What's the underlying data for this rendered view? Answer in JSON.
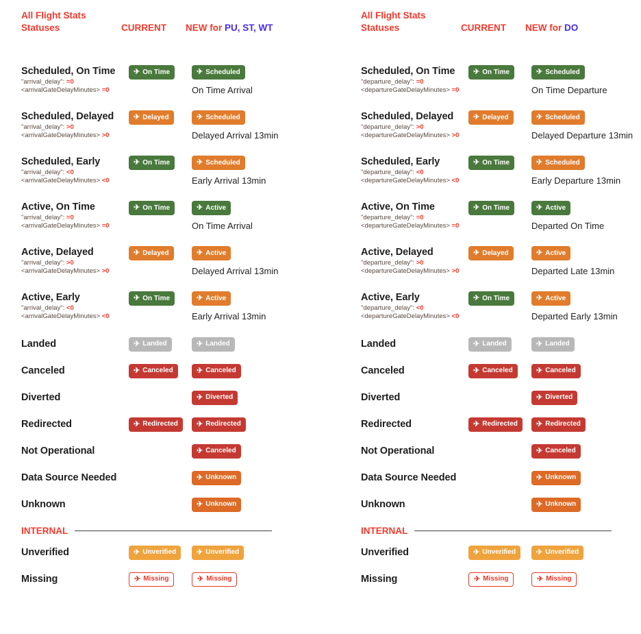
{
  "colors": {
    "accent_red": "#f4392d",
    "accent_blue": "#4b2ce0",
    "label": "#1e1e1e",
    "code_name": "#5a473f",
    "code_value": "#f4392d",
    "description": "#222222",
    "badge_green": "#49793c",
    "badge_orange": "#e07c2c",
    "badge_orange_deep": "#dd6a26",
    "badge_red": "#c43a33",
    "badge_gray": "#b9b8b8",
    "badge_amber": "#efa33d",
    "badge_outline_red": "#e8382a",
    "divider": "#3d3d3d"
  },
  "icons": {
    "plane": "✈"
  },
  "columns": [
    {
      "id": "arrivals",
      "header": {
        "title_line1": "All Flight Stats",
        "title_line2": "Statuses",
        "current": "CURRENT",
        "new_prefix": "NEW for",
        "new_target": "PU, ST, WT"
      },
      "detail_rows": [
        {
          "label": "Scheduled, On Time",
          "code1_name": "\"arrival_delay\":",
          "code1_value": "=0",
          "code2_name": "<arrivalGateDelayMinutes>",
          "code2_value": "=0",
          "current_badge": {
            "label": "On Time",
            "variant": "green"
          },
          "new_badge": {
            "label": "Scheduled",
            "variant": "green"
          },
          "description": "On Time Arrival",
          "gap": false
        },
        {
          "label": "Scheduled, Delayed",
          "code1_name": "\"arrival_delay\":",
          "code1_value": ">0",
          "code2_name": "<arrivalGateDelayMinutes>",
          "code2_value": ">0",
          "current_badge": {
            "label": "Delayed",
            "variant": "orange"
          },
          "new_badge": {
            "label": "Scheduled",
            "variant": "orange"
          },
          "description": "Delayed Arrival 13min",
          "gap": false
        },
        {
          "label": "Scheduled, Early",
          "code1_name": "\"arrival_delay\":",
          "code1_value": "<0",
          "code2_name": "<arrivalGateDelayMinutes>",
          "code2_value": "<0",
          "current_badge": {
            "label": "On Time",
            "variant": "green"
          },
          "new_badge": {
            "label": "Scheduled",
            "variant": "orange"
          },
          "description": "Early Arrival 13min",
          "gap": false
        },
        {
          "label": "Active, On Time",
          "code1_name": "\"arrival_delay\":",
          "code1_value": "=0",
          "code2_name": "<arrivalGateDelayMinutes>",
          "code2_value": "=0",
          "current_badge": {
            "label": "On Time",
            "variant": "green"
          },
          "new_badge": {
            "label": "Active",
            "variant": "green"
          },
          "description": "On Time Arrival",
          "gap": true
        },
        {
          "label": "Active, Delayed",
          "code1_name": "\"arrival_delay\":",
          "code1_value": ">0",
          "code2_name": "<arrivalGateDelayMinutes>",
          "code2_value": ">0",
          "current_badge": {
            "label": "Delayed",
            "variant": "orange"
          },
          "new_badge": {
            "label": "Active",
            "variant": "orange"
          },
          "description": "Delayed Arrival 13min",
          "gap": false
        },
        {
          "label": "Active, Early",
          "code1_name": "\"arrival_delay\":",
          "code1_value": "<0",
          "code2_name": "<arrivalGateDelayMinutes>",
          "code2_value": "<0",
          "current_badge": {
            "label": "On Time",
            "variant": "green"
          },
          "new_badge": {
            "label": "Active",
            "variant": "orange"
          },
          "description": "Early Arrival 13min",
          "gap": false
        }
      ],
      "simple_rows": [
        {
          "label": "Landed",
          "current_badge": {
            "label": "Landed",
            "variant": "gray"
          },
          "new_badge": {
            "label": "Landed",
            "variant": "gray"
          },
          "gap": true
        },
        {
          "label": "Canceled",
          "current_badge": {
            "label": "Canceled",
            "variant": "red"
          },
          "new_badge": {
            "label": "Canceled",
            "variant": "red"
          },
          "gap": false
        },
        {
          "label": "Diverted",
          "current_badge": null,
          "new_badge": {
            "label": "Diverted",
            "variant": "red"
          },
          "gap": false
        },
        {
          "label": "Redirected",
          "current_badge": {
            "label": "Redirected",
            "variant": "red"
          },
          "new_badge": {
            "label": "Redirected",
            "variant": "red"
          },
          "gap": false
        },
        {
          "label": "Not Operational",
          "current_badge": null,
          "new_badge": {
            "label": "Canceled",
            "variant": "red"
          },
          "gap": false
        },
        {
          "label": "Data Source Needed",
          "current_badge": null,
          "new_badge": {
            "label": "Unknown",
            "variant": "orange-deep"
          },
          "gap": false
        },
        {
          "label": "Unknown",
          "current_badge": null,
          "new_badge": {
            "label": "Unknown",
            "variant": "orange-deep"
          },
          "gap": false
        }
      ],
      "internal": {
        "label": "INTERNAL",
        "rows": [
          {
            "label": "Unverified",
            "current_badge": {
              "label": "Unverified",
              "variant": "amber"
            },
            "new_badge": {
              "label": "Unverified",
              "variant": "amber"
            },
            "gap": false
          },
          {
            "label": "Missing",
            "current_badge": {
              "label": "Missing",
              "variant": "outline"
            },
            "new_badge": {
              "label": "Missing",
              "variant": "outline"
            },
            "gap": false
          }
        ]
      }
    },
    {
      "id": "departures",
      "header": {
        "title_line1": "All Flight Stats",
        "title_line2": "Statuses",
        "current": "CURRENT",
        "new_prefix": "NEW for",
        "new_target": "DO"
      },
      "detail_rows": [
        {
          "label": "Scheduled, On Time",
          "code1_name": "\"departure_delay\":",
          "code1_value": "=0",
          "code2_name": "<departureGateDelayMinutes>",
          "code2_value": "=0",
          "current_badge": {
            "label": "On Time",
            "variant": "green"
          },
          "new_badge": {
            "label": "Scheduled",
            "variant": "green"
          },
          "description": "On Time Departure",
          "gap": false
        },
        {
          "label": "Scheduled, Delayed",
          "code1_name": "\"departure_delay\":",
          "code1_value": ">0",
          "code2_name": "<departureGateDelayMinutes>",
          "code2_value": ">0",
          "current_badge": {
            "label": "Delayed",
            "variant": "orange"
          },
          "new_badge": {
            "label": "Scheduled",
            "variant": "orange"
          },
          "description": "Delayed Departure 13min",
          "gap": false
        },
        {
          "label": "Scheduled, Early",
          "code1_name": "\"departure_delay\":",
          "code1_value": "<0",
          "code2_name": "<departureGateDelayMinutes>",
          "code2_value": "<0",
          "current_badge": {
            "label": "On Time",
            "variant": "green"
          },
          "new_badge": {
            "label": "Scheduled",
            "variant": "orange"
          },
          "description": "Early Departure 13min",
          "gap": false
        },
        {
          "label": "Active, On Time",
          "code1_name": "\"departure_delay\":",
          "code1_value": "=0",
          "code2_name": "<departureGateDelayMinutes>",
          "code2_value": "=0",
          "current_badge": {
            "label": "On Time",
            "variant": "green"
          },
          "new_badge": {
            "label": "Active",
            "variant": "green"
          },
          "description": "Departed On Time",
          "gap": true
        },
        {
          "label": "Active, Delayed",
          "code1_name": "\"departure_delay\":",
          "code1_value": ">0",
          "code2_name": "<departureGateDelayMinutes>",
          "code2_value": ">0",
          "current_badge": {
            "label": "Delayed",
            "variant": "orange"
          },
          "new_badge": {
            "label": "Active",
            "variant": "orange"
          },
          "description": "Departed Late 13min",
          "gap": false
        },
        {
          "label": "Active, Early",
          "code1_name": "\"departure_delay\":",
          "code1_value": "<0",
          "code2_name": "<departureGateDelayMinutes>",
          "code2_value": "<0",
          "current_badge": {
            "label": "On Time",
            "variant": "green"
          },
          "new_badge": {
            "label": "Active",
            "variant": "orange"
          },
          "description": "Departed Early 13min",
          "gap": false
        }
      ],
      "simple_rows": [
        {
          "label": "Landed",
          "current_badge": {
            "label": "Landed",
            "variant": "gray"
          },
          "new_badge": {
            "label": "Landed",
            "variant": "gray"
          },
          "gap": true
        },
        {
          "label": "Canceled",
          "current_badge": {
            "label": "Canceled",
            "variant": "red"
          },
          "new_badge": {
            "label": "Canceled",
            "variant": "red"
          },
          "gap": false
        },
        {
          "label": "Diverted",
          "current_badge": null,
          "new_badge": {
            "label": "Diverted",
            "variant": "red"
          },
          "gap": false
        },
        {
          "label": "Redirected",
          "current_badge": {
            "label": "Redirected",
            "variant": "red"
          },
          "new_badge": {
            "label": "Redirected",
            "variant": "red"
          },
          "gap": false
        },
        {
          "label": "Not Operational",
          "current_badge": null,
          "new_badge": {
            "label": "Canceled",
            "variant": "red"
          },
          "gap": false
        },
        {
          "label": "Data Source Needed",
          "current_badge": null,
          "new_badge": {
            "label": "Unknown",
            "variant": "orange-deep"
          },
          "gap": false
        },
        {
          "label": "Unknown",
          "current_badge": null,
          "new_badge": {
            "label": "Unknown",
            "variant": "orange-deep"
          },
          "gap": false
        }
      ],
      "internal": {
        "label": "INTERNAL",
        "rows": [
          {
            "label": "Unverified",
            "current_badge": {
              "label": "Unverified",
              "variant": "amber"
            },
            "new_badge": {
              "label": "Unverified",
              "variant": "amber"
            },
            "gap": false
          },
          {
            "label": "Missing",
            "current_badge": {
              "label": "Missing",
              "variant": "outline"
            },
            "new_badge": {
              "label": "Missing",
              "variant": "outline"
            },
            "gap": false
          }
        ]
      }
    }
  ]
}
